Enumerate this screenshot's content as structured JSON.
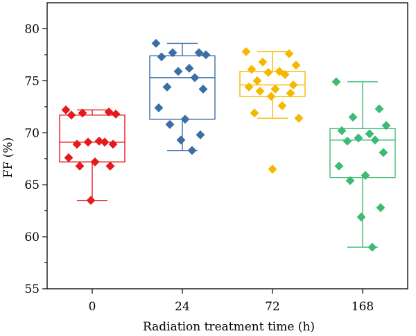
{
  "chart_data": {
    "type": "box",
    "title": "",
    "xlabel": "Radiation treatment time (h)",
    "ylabel": "FF (%)",
    "ylim": [
      55,
      82.5
    ],
    "yticks": [
      55,
      60,
      65,
      70,
      75,
      80
    ],
    "categories": [
      "0",
      "24",
      "72",
      "168"
    ],
    "grid": false,
    "legend": "none",
    "series": [
      {
        "color": "#e41a1c",
        "box": {
          "min": 63.5,
          "q1": 67.2,
          "median": 69.1,
          "q3": 71.7,
          "max": 72.2
        },
        "points": [
          72.2,
          72.0,
          71.9,
          71.8,
          71.7,
          69.2,
          69.1,
          69.1,
          68.9,
          68.9,
          67.6,
          67.2,
          66.8,
          66.8,
          63.5
        ]
      },
      {
        "color": "#3b6ea5",
        "box": {
          "min": 68.3,
          "q1": 71.3,
          "median": 75.3,
          "q3": 77.4,
          "max": 78.6
        },
        "points": [
          78.6,
          77.7,
          77.7,
          77.5,
          77.3,
          76.2,
          75.9,
          75.3,
          74.4,
          74.2,
          72.4,
          71.3,
          70.8,
          69.8,
          69.3,
          68.3
        ]
      },
      {
        "color": "#f5b800",
        "box": {
          "min": 71.4,
          "q1": 73.5,
          "median": 74.6,
          "q3": 75.9,
          "max": 77.8
        },
        "points": [
          77.8,
          77.6,
          76.8,
          76.5,
          76.1,
          75.9,
          75.8,
          75.6,
          75.0,
          74.6,
          74.4,
          74.2,
          74.0,
          73.8,
          73.5,
          72.6,
          71.9,
          71.4,
          66.5
        ]
      },
      {
        "color": "#3dbb72",
        "box": {
          "min": 59.0,
          "q1": 65.7,
          "median": 69.3,
          "q3": 70.4,
          "max": 74.9
        },
        "points": [
          74.9,
          72.3,
          71.5,
          70.7,
          70.2,
          69.9,
          69.5,
          69.3,
          69.2,
          68.1,
          66.8,
          65.9,
          65.4,
          62.8,
          61.9,
          59.0
        ]
      }
    ]
  }
}
